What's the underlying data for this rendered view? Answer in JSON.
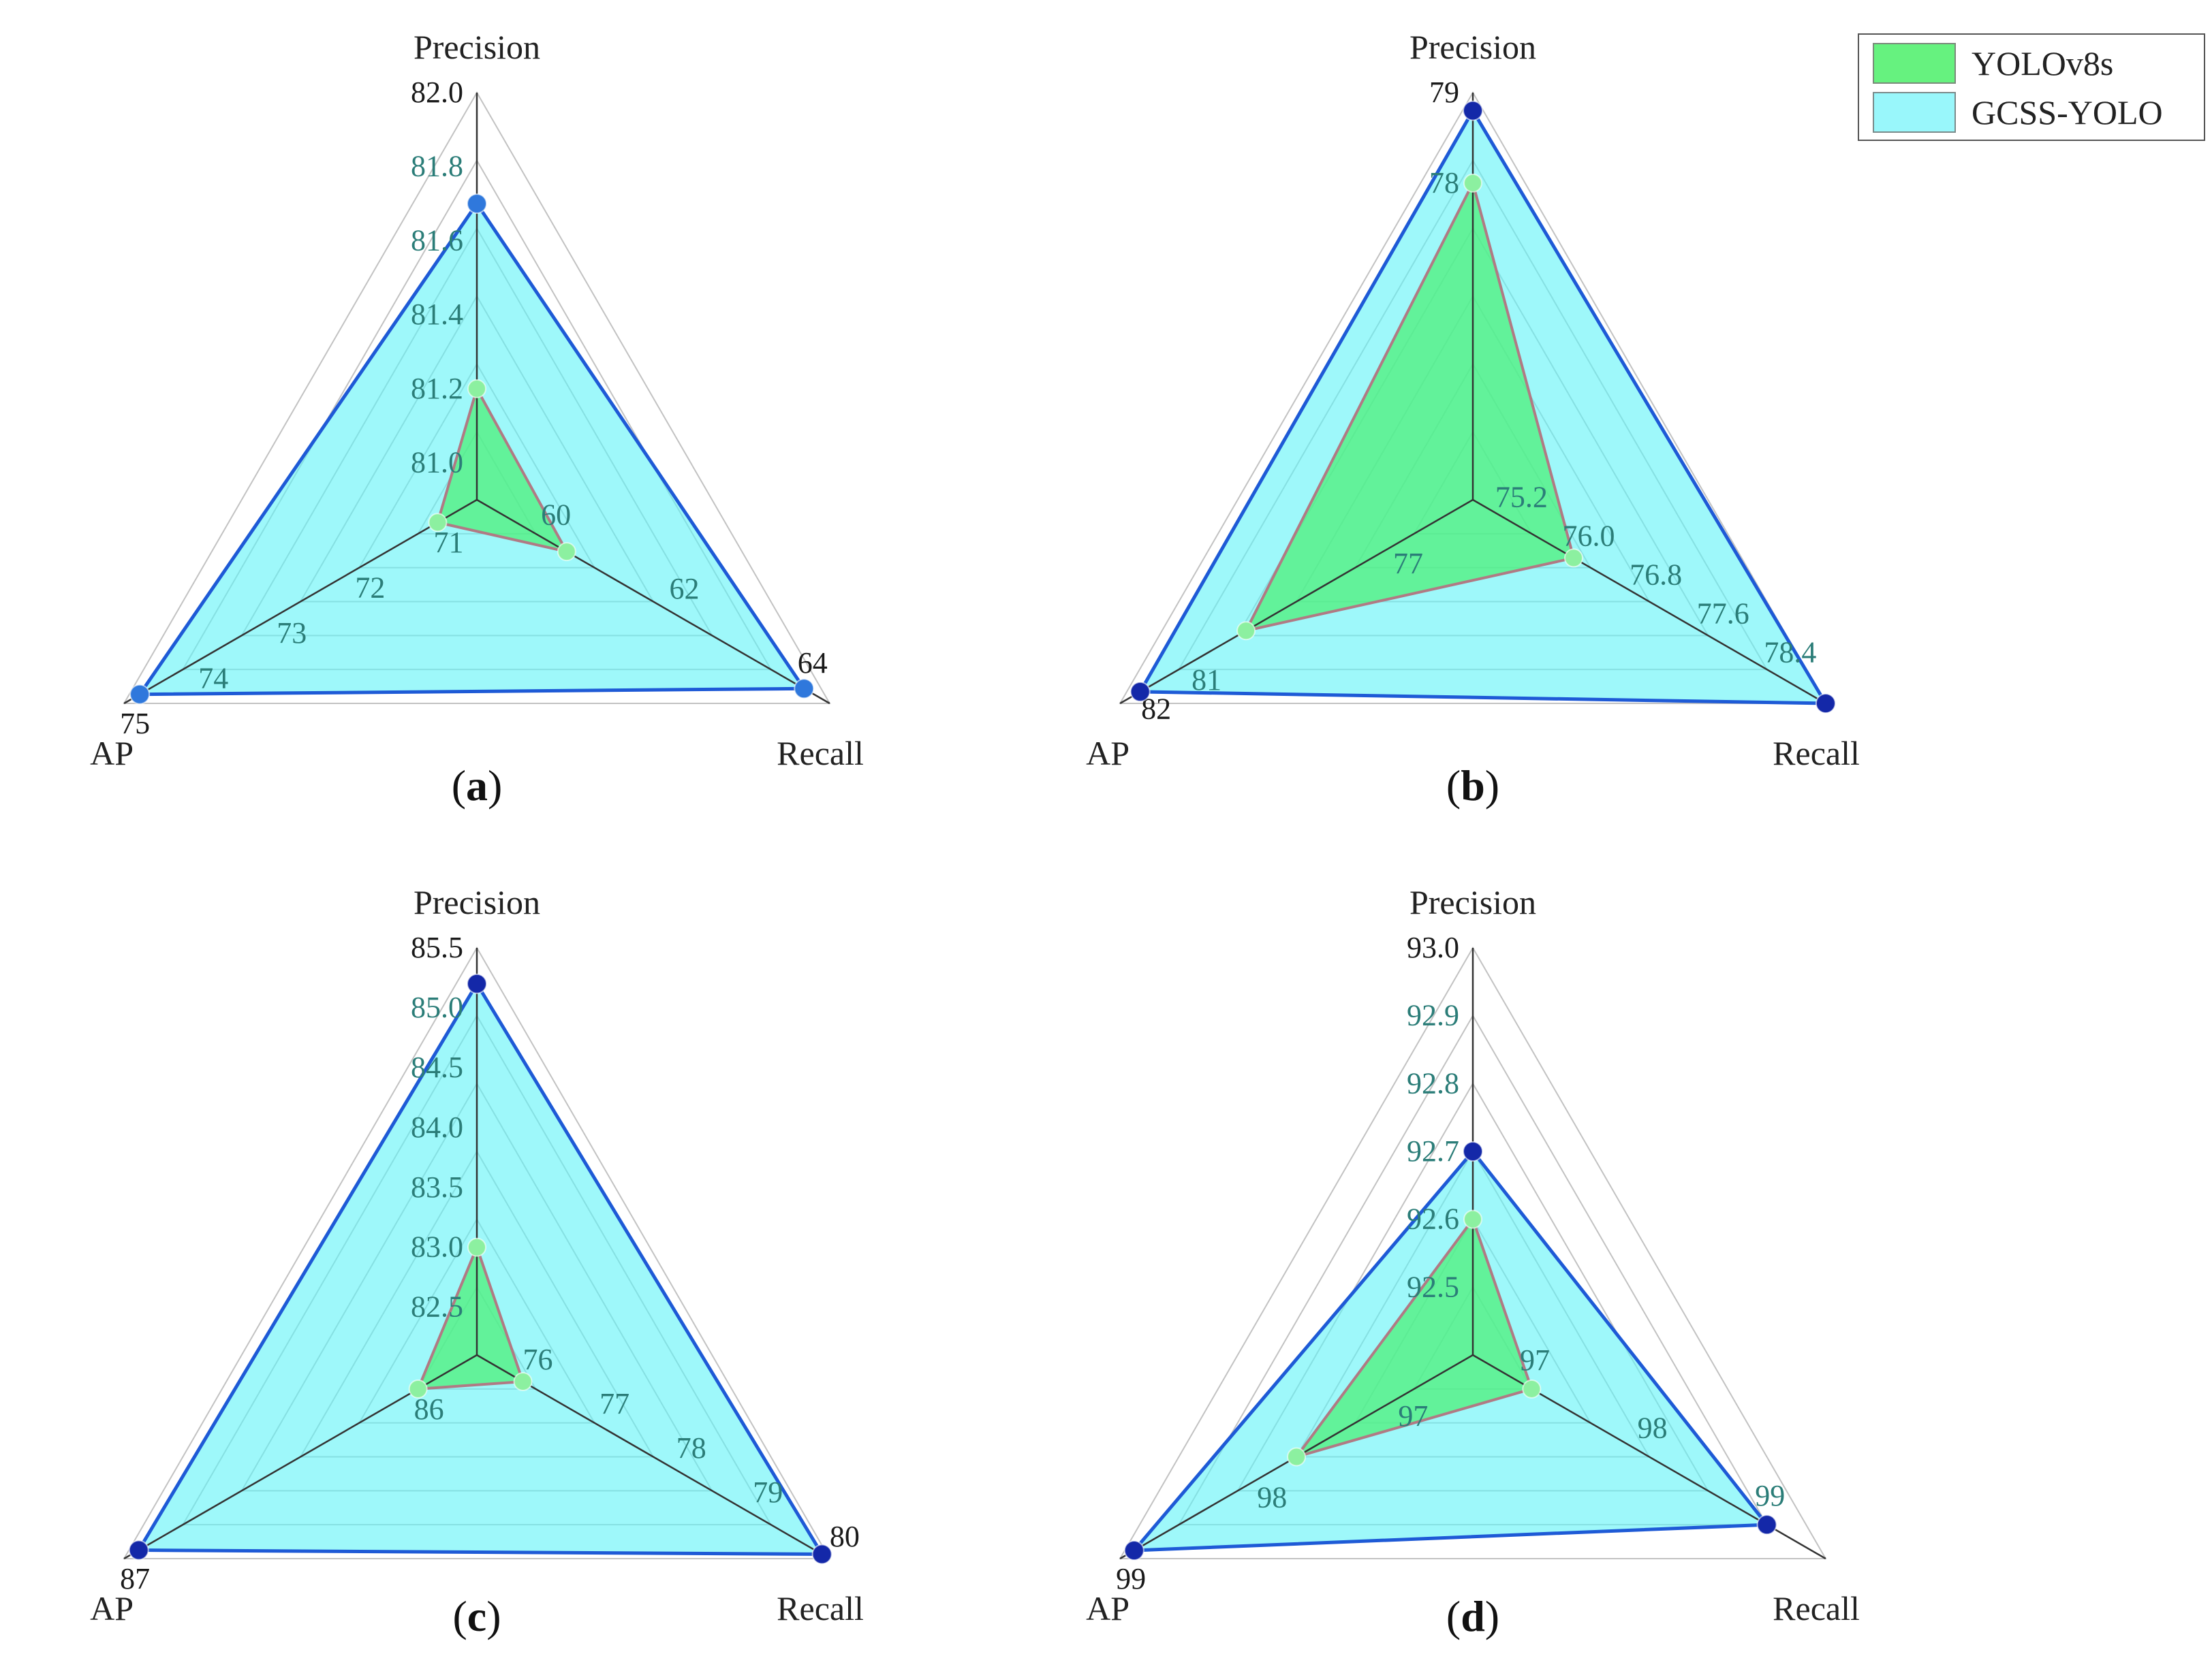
{
  "chart_data": [
    {
      "type": "radar",
      "panel_label": "(a)",
      "axes": [
        {
          "name": "Precision",
          "ticks": [
            "82.0",
            "81.8",
            "81.6",
            "81.4",
            "81.2",
            "81.0"
          ],
          "range": [
            80.9,
            82.0
          ]
        },
        {
          "name": "Recall",
          "ticks": [
            "60",
            "62",
            "64"
          ],
          "range": [
            59,
            64.5
          ]
        },
        {
          "name": "AP",
          "ticks": [
            "71",
            "72",
            "73",
            "74",
            "75"
          ],
          "range": [
            70.5,
            75
          ]
        }
      ],
      "series": [
        {
          "name": "YOLOv8s",
          "values": [
            81.2,
            60.4,
            71.0
          ]
        },
        {
          "name": "GCSS-YOLO",
          "values": [
            81.7,
            64.1,
            74.8
          ]
        }
      ]
    },
    {
      "type": "radar",
      "panel_label": "(b)",
      "axes": [
        {
          "name": "Precision",
          "ticks": [
            "79",
            "78"
          ],
          "range": [
            74.5,
            79
          ]
        },
        {
          "name": "Recall",
          "ticks": [
            "75.2",
            "76.0",
            "76.8",
            "77.6",
            "78.4"
          ],
          "range": [
            74.8,
            79
          ]
        },
        {
          "name": "AP",
          "ticks": [
            "77",
            "81",
            "82"
          ],
          "range": [
            75.5,
            82.5
          ]
        }
      ],
      "series": [
        {
          "name": "YOLOv8s",
          "values": [
            78.0,
            76.0,
            80.0
          ]
        },
        {
          "name": "GCSS-YOLO",
          "values": [
            78.8,
            79.0,
            82.1
          ]
        }
      ]
    },
    {
      "type": "radar",
      "panel_label": "(c)",
      "axes": [
        {
          "name": "Precision",
          "ticks": [
            "85.5",
            "85.0",
            "84.5",
            "84.0",
            "83.5",
            "83.0",
            "82.5"
          ],
          "range": [
            82.1,
            85.5
          ]
        },
        {
          "name": "Recall",
          "ticks": [
            "76",
            "77",
            "78",
            "79",
            "80"
          ],
          "range": [
            75.4,
            80
          ]
        },
        {
          "name": "AP",
          "ticks": [
            "86",
            "87"
          ],
          "range": [
            85.8,
            87
          ]
        }
      ],
      "series": [
        {
          "name": "YOLOv8s",
          "values": [
            83.0,
            76.0,
            86.0
          ]
        },
        {
          "name": "GCSS-YOLO",
          "values": [
            85.2,
            79.9,
            86.95
          ]
        }
      ]
    },
    {
      "type": "radar",
      "panel_label": "(d)",
      "axes": [
        {
          "name": "Precision",
          "ticks": [
            "93.0",
            "92.9",
            "92.8",
            "92.7",
            "92.6",
            "92.5"
          ],
          "range": [
            92.4,
            93.0
          ]
        },
        {
          "name": "Recall",
          "ticks": [
            "97",
            "98",
            "99"
          ],
          "range": [
            96.6,
            99.6
          ]
        },
        {
          "name": "AP",
          "ticks": [
            "97",
            "98",
            "99"
          ],
          "range": [
            96.5,
            99
          ]
        }
      ],
      "series": [
        {
          "name": "YOLOv8s",
          "values": [
            92.6,
            97.1,
            97.75
          ]
        },
        {
          "name": "GCSS-YOLO",
          "values": [
            92.7,
            99.1,
            98.9
          ]
        }
      ]
    }
  ],
  "legend": {
    "placement": "top-right",
    "entries": [
      {
        "name": "YOLOv8s",
        "color": "#66f27f"
      },
      {
        "name": "GCSS-YOLO",
        "color": "#99f7fb"
      }
    ]
  },
  "colors": {
    "yolo_fill": "#4df07a",
    "yolo_stroke": "#b07a84",
    "yolo_point": "#8cf0a0",
    "gcss_fill": "#5ef3f7",
    "gcss_stroke": "#1e5ad6",
    "gcss_point_a": "#2f78dc",
    "gcss_point": "#1428a8",
    "tick_outer": "#1a1a1a",
    "tick_inner": "#2b7d78",
    "grid": "#c2c2c2",
    "axis": "#333333"
  }
}
